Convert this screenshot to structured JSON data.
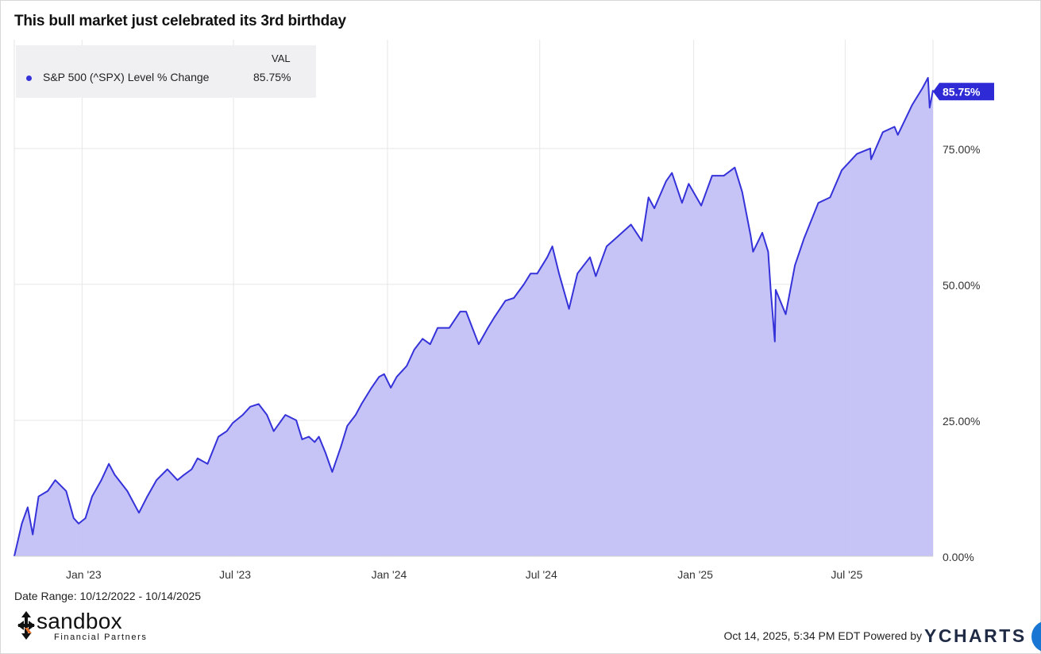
{
  "title": "This bull market just celebrated its 3rd birthday",
  "legend": {
    "header": "VAL",
    "series_name": "S&P 500 (^SPX) Level % Change",
    "value": "85.75%"
  },
  "end_label": "85.75%",
  "date_range": "Date Range: 10/12/2022 - 10/14/2025",
  "logo": {
    "word": "sandbox",
    "sub": "Financial Partners"
  },
  "footer": {
    "timestamp": "Oct 14, 2025, 5:34 PM EDT Powered by",
    "brand": "YCHARTS"
  },
  "colors": {
    "line": "#3532d9",
    "fill": "#c3c1f7",
    "grid": "#e6e6e6",
    "accent_label": "#2e2bd6"
  },
  "chart_data": {
    "type": "area",
    "title": "This bull market just celebrated its 3rd birthday",
    "series_name": "S&P 500 (^SPX) Level % Change",
    "x_ticks": [
      "Jan '23",
      "Jul '23",
      "Jan '24",
      "Jul '24",
      "Jan '25",
      "Jul '25"
    ],
    "y_ticks": [
      "0.00%",
      "25.00%",
      "50.00%",
      "75.00%"
    ],
    "ylim": [
      0,
      95
    ],
    "xlim": [
      "2022-10-12",
      "2025-10-14"
    ],
    "grid": true,
    "legend_position": "top-left",
    "points": [
      [
        "2022-10-12",
        0
      ],
      [
        "2022-10-21",
        6
      ],
      [
        "2022-10-28",
        9
      ],
      [
        "2022-11-03",
        4
      ],
      [
        "2022-11-10",
        11
      ],
      [
        "2022-11-21",
        12
      ],
      [
        "2022-11-30",
        14
      ],
      [
        "2022-12-13",
        12
      ],
      [
        "2022-12-22",
        7
      ],
      [
        "2022-12-28",
        6
      ],
      [
        "2023-01-05",
        7
      ],
      [
        "2023-01-13",
        11
      ],
      [
        "2023-01-24",
        14
      ],
      [
        "2023-02-02",
        17
      ],
      [
        "2023-02-09",
        15
      ],
      [
        "2023-02-24",
        12
      ],
      [
        "2023-03-10",
        8
      ],
      [
        "2023-03-20",
        11
      ],
      [
        "2023-03-31",
        14
      ],
      [
        "2023-04-13",
        16
      ],
      [
        "2023-04-25",
        14
      ],
      [
        "2023-05-03",
        15
      ],
      [
        "2023-05-12",
        16
      ],
      [
        "2023-05-19",
        18
      ],
      [
        "2023-05-31",
        17
      ],
      [
        "2023-06-13",
        22
      ],
      [
        "2023-06-23",
        23
      ],
      [
        "2023-06-30",
        24.5
      ],
      [
        "2023-07-12",
        26
      ],
      [
        "2023-07-21",
        27.5
      ],
      [
        "2023-07-31",
        28
      ],
      [
        "2023-08-10",
        26
      ],
      [
        "2023-08-18",
        23
      ],
      [
        "2023-09-01",
        26
      ],
      [
        "2023-09-14",
        25
      ],
      [
        "2023-09-21",
        21.5
      ],
      [
        "2023-09-29",
        22
      ],
      [
        "2023-10-06",
        21
      ],
      [
        "2023-10-11",
        22
      ],
      [
        "2023-10-19",
        19
      ],
      [
        "2023-10-27",
        15.5
      ],
      [
        "2023-11-06",
        20
      ],
      [
        "2023-11-14",
        24
      ],
      [
        "2023-11-24",
        26
      ],
      [
        "2023-12-01",
        28
      ],
      [
        "2023-12-13",
        31
      ],
      [
        "2023-12-22",
        33
      ],
      [
        "2023-12-28",
        33.5
      ],
      [
        "2024-01-05",
        31
      ],
      [
        "2024-01-12",
        33
      ],
      [
        "2024-01-24",
        35
      ],
      [
        "2024-02-02",
        38
      ],
      [
        "2024-02-12",
        40
      ],
      [
        "2024-02-21",
        39
      ],
      [
        "2024-03-01",
        42
      ],
      [
        "2024-03-15",
        42
      ],
      [
        "2024-03-28",
        45
      ],
      [
        "2024-04-04",
        45
      ],
      [
        "2024-04-19",
        39
      ],
      [
        "2024-04-30",
        42
      ],
      [
        "2024-05-08",
        44
      ],
      [
        "2024-05-21",
        47
      ],
      [
        "2024-05-31",
        47.5
      ],
      [
        "2024-06-12",
        50
      ],
      [
        "2024-06-20",
        52
      ],
      [
        "2024-06-28",
        52
      ],
      [
        "2024-07-10",
        55
      ],
      [
        "2024-07-16",
        57
      ],
      [
        "2024-07-24",
        52
      ],
      [
        "2024-08-05",
        45.5
      ],
      [
        "2024-08-15",
        52
      ],
      [
        "2024-08-30",
        55
      ],
      [
        "2024-09-06",
        51.5
      ],
      [
        "2024-09-19",
        57
      ],
      [
        "2024-09-30",
        58.5
      ],
      [
        "2024-10-18",
        61
      ],
      [
        "2024-10-31",
        58
      ],
      [
        "2024-11-08",
        66
      ],
      [
        "2024-11-15",
        64
      ],
      [
        "2024-11-29",
        69
      ],
      [
        "2024-12-06",
        70.5
      ],
      [
        "2024-12-18",
        65
      ],
      [
        "2024-12-26",
        68.5
      ],
      [
        "2025-01-10",
        64.5
      ],
      [
        "2025-01-23",
        70
      ],
      [
        "2025-02-06",
        70
      ],
      [
        "2025-02-19",
        71.5
      ],
      [
        "2025-02-28",
        67
      ],
      [
        "2025-03-10",
        59
      ],
      [
        "2025-03-13",
        56
      ],
      [
        "2025-03-24",
        59.5
      ],
      [
        "2025-03-31",
        56
      ],
      [
        "2025-04-03",
        49
      ],
      [
        "2025-04-08",
        39.5
      ],
      [
        "2025-04-09",
        49
      ],
      [
        "2025-04-21",
        44.5
      ],
      [
        "2025-05-02",
        53.5
      ],
      [
        "2025-05-13",
        58.5
      ],
      [
        "2025-05-30",
        65
      ],
      [
        "2025-06-13",
        66
      ],
      [
        "2025-06-27",
        71
      ],
      [
        "2025-07-15",
        74
      ],
      [
        "2025-07-31",
        75
      ],
      [
        "2025-08-01",
        73
      ],
      [
        "2025-08-15",
        78
      ],
      [
        "2025-08-29",
        79
      ],
      [
        "2025-09-02",
        77.5
      ],
      [
        "2025-09-19",
        83
      ],
      [
        "2025-10-01",
        86
      ],
      [
        "2025-10-08",
        88
      ],
      [
        "2025-10-10",
        82.5
      ],
      [
        "2025-10-14",
        85.75
      ]
    ]
  }
}
